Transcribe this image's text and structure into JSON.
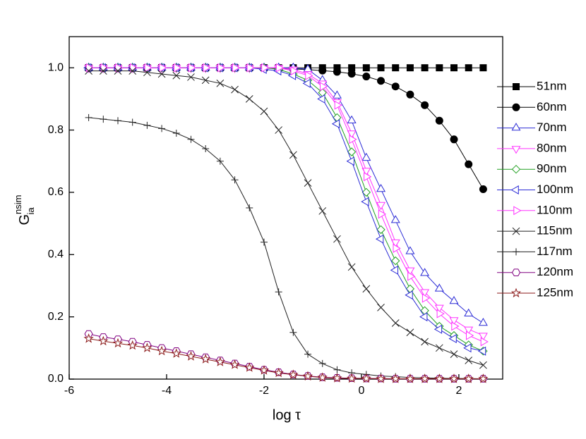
{
  "chart_data": {
    "type": "line",
    "xlabel": "log τ",
    "ylabel": {
      "main": "G",
      "sup": "nsim",
      "sub": "ia"
    },
    "x": [
      -5.6,
      -5.3,
      -5.0,
      -4.7,
      -4.4,
      -4.1,
      -3.8,
      -3.5,
      -3.2,
      -2.9,
      -2.6,
      -2.3,
      -2.0,
      -1.7,
      -1.4,
      -1.1,
      -0.8,
      -0.5,
      -0.2,
      0.1,
      0.4,
      0.7,
      1.0,
      1.3,
      1.6,
      1.9,
      2.2,
      2.5
    ],
    "xlim": [
      -6,
      2.9
    ],
    "xticks": [
      -6,
      -4,
      -2,
      0,
      2
    ],
    "ylim": [
      0,
      1.1
    ],
    "yticks": [
      {
        "value": 0,
        "label": "0.0"
      },
      0.2,
      0.4,
      0.6,
      0.8,
      {
        "value": 1,
        "label": "1.0"
      }
    ],
    "legend": "right",
    "series": [
      {
        "name": "51nm",
        "color": "#000000",
        "marker": "square",
        "filled": true,
        "values": [
          1,
          1,
          1,
          1,
          1,
          1,
          1,
          1,
          1,
          1,
          1,
          1,
          1,
          1,
          1,
          1,
          1,
          1,
          1,
          1,
          1,
          1,
          1,
          1,
          1,
          1,
          1,
          1
        ]
      },
      {
        "name": "60nm",
        "color": "#000000",
        "marker": "circle",
        "filled": true,
        "values": [
          1,
          1,
          1,
          1,
          1,
          1,
          1,
          1,
          1,
          1,
          1,
          1,
          1,
          0.997,
          0.996,
          0.994,
          0.991,
          0.987,
          0.981,
          0.972,
          0.958,
          0.94,
          0.914,
          0.88,
          0.83,
          0.77,
          0.69,
          0.61
        ]
      },
      {
        "name": "70nm",
        "color": "#2b2bd6",
        "marker": "triangle-up",
        "filled": false,
        "values": [
          1,
          1,
          1,
          1,
          1,
          1,
          1,
          1,
          1,
          1,
          1,
          1,
          1,
          1,
          1,
          0.995,
          0.96,
          0.91,
          0.83,
          0.71,
          0.61,
          0.51,
          0.41,
          0.34,
          0.29,
          0.25,
          0.21,
          0.18
        ]
      },
      {
        "name": "80nm",
        "color": "#ff33ff",
        "marker": "triangle-down",
        "filled": false,
        "values": [
          1,
          1,
          1,
          1,
          1,
          1,
          1,
          1,
          1,
          1,
          1,
          1,
          1,
          1,
          0.995,
          0.98,
          0.95,
          0.89,
          0.79,
          0.67,
          0.56,
          0.44,
          0.35,
          0.28,
          0.23,
          0.19,
          0.16,
          0.14
        ]
      },
      {
        "name": "90nm",
        "color": "#22a022",
        "marker": "diamond",
        "filled": false,
        "values": [
          1,
          1,
          1,
          1,
          1,
          1,
          1,
          1,
          1,
          1,
          1,
          1,
          1,
          0.995,
          0.98,
          0.96,
          0.92,
          0.84,
          0.73,
          0.6,
          0.48,
          0.38,
          0.29,
          0.22,
          0.17,
          0.14,
          0.11,
          0.09
        ]
      },
      {
        "name": "100nm",
        "color": "#2b2bd6",
        "marker": "triangle-left",
        "filled": false,
        "values": [
          1,
          1,
          1,
          1,
          1,
          1,
          1,
          1,
          1,
          1,
          1,
          1,
          0.995,
          0.99,
          0.975,
          0.95,
          0.9,
          0.82,
          0.7,
          0.57,
          0.45,
          0.35,
          0.27,
          0.2,
          0.16,
          0.13,
          0.1,
          0.09
        ]
      },
      {
        "name": "110nm",
        "color": "#ff33ff",
        "marker": "triangle-right",
        "filled": false,
        "values": [
          1,
          1,
          1,
          1,
          1,
          1,
          1,
          1,
          1,
          1,
          1,
          1,
          1,
          1,
          0.99,
          0.975,
          0.94,
          0.88,
          0.77,
          0.65,
          0.53,
          0.42,
          0.33,
          0.26,
          0.21,
          0.17,
          0.14,
          0.12
        ]
      },
      {
        "name": "115nm",
        "color": "#222222",
        "marker": "cross",
        "filled": false,
        "values": [
          0.99,
          0.99,
          0.99,
          0.99,
          0.985,
          0.98,
          0.975,
          0.97,
          0.96,
          0.95,
          0.93,
          0.9,
          0.86,
          0.8,
          0.72,
          0.63,
          0.54,
          0.45,
          0.36,
          0.29,
          0.23,
          0.18,
          0.15,
          0.12,
          0.1,
          0.08,
          0.06,
          0.045
        ]
      },
      {
        "name": "117nm",
        "color": "#222222",
        "marker": "plus",
        "filled": false,
        "values": [
          0.84,
          0.835,
          0.83,
          0.825,
          0.815,
          0.805,
          0.79,
          0.77,
          0.74,
          0.7,
          0.64,
          0.55,
          0.44,
          0.28,
          0.15,
          0.08,
          0.05,
          0.03,
          0.02,
          0.015,
          0.01,
          0.008,
          0.005,
          0.004,
          0.003,
          0.002,
          0.002,
          0.001
        ]
      },
      {
        "name": "120nm",
        "color": "#800080",
        "marker": "hexagon",
        "filled": false,
        "values": [
          0.145,
          0.135,
          0.128,
          0.12,
          0.11,
          0.1,
          0.09,
          0.08,
          0.07,
          0.06,
          0.05,
          0.04,
          0.03,
          0.022,
          0.015,
          0.01,
          0.006,
          0.004,
          0.003,
          0.002,
          0.002,
          0.001,
          0.001,
          0.001,
          0.001,
          0.001,
          0.001,
          0.001
        ]
      },
      {
        "name": "125nm",
        "color": "#8b1a1a",
        "marker": "star",
        "filled": false,
        "values": [
          0.13,
          0.122,
          0.115,
          0.108,
          0.1,
          0.09,
          0.082,
          0.073,
          0.064,
          0.055,
          0.046,
          0.037,
          0.028,
          0.02,
          0.014,
          0.009,
          0.005,
          0.003,
          0.002,
          0.002,
          0.001,
          0.001,
          0.001,
          0.001,
          0.001,
          0.001,
          0.001,
          0.001
        ]
      }
    ]
  }
}
